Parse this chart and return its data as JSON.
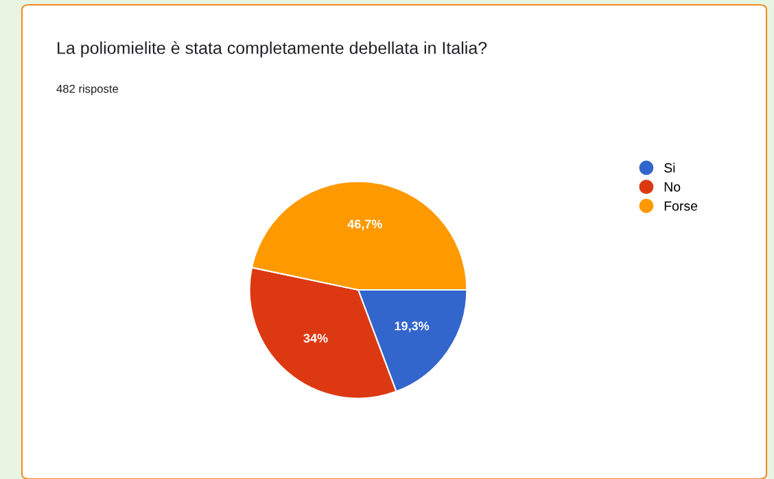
{
  "chart_data": {
    "type": "pie",
    "title": "La poliomielite è stata completamente debellata in Italia?",
    "subtitle": "482 risposte",
    "categories": [
      "Si",
      "No",
      "Forse"
    ],
    "values": [
      19.3,
      34,
      46.7
    ],
    "value_labels": [
      "19,3%",
      "34%",
      "46,7%"
    ],
    "colors": [
      "#3366cc",
      "#dc3912",
      "#ff9900"
    ],
    "legend": "top right"
  }
}
